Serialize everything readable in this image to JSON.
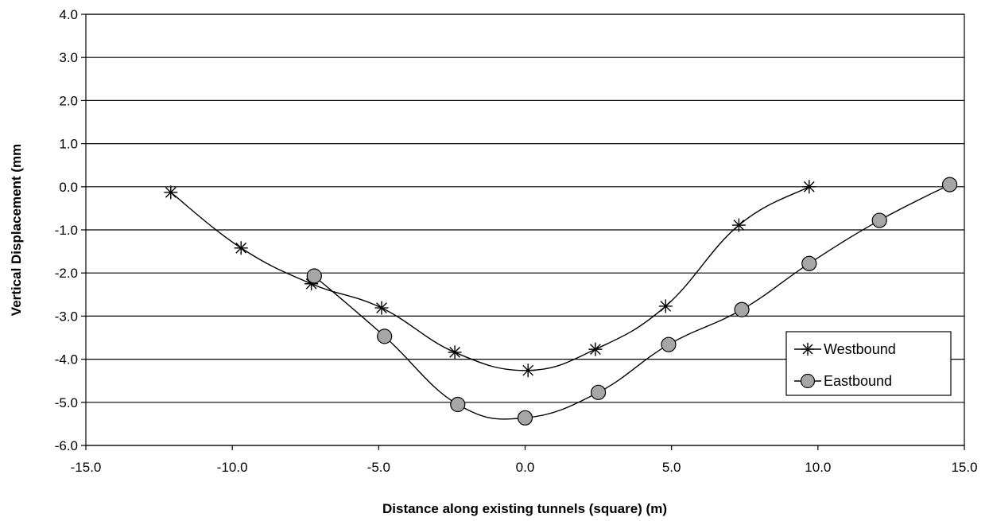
{
  "chart_data": {
    "type": "line",
    "title": "",
    "xlabel": "Distance along existing tunnels (square) (m)",
    "ylabel": "Vertical Displacement (mm",
    "xlim": [
      -15,
      15
    ],
    "ylim": [
      -6,
      4
    ],
    "x_ticks": [
      -15,
      -10,
      -5,
      0,
      5,
      10,
      15
    ],
    "y_ticks": [
      4,
      3,
      2,
      1,
      0,
      -1,
      -2,
      -3,
      -4,
      -5,
      -6
    ],
    "x_tick_labels": [
      "-15.0",
      "-10.0",
      "-5.0",
      "0.0",
      "5.0",
      "10.0",
      "15.0"
    ],
    "y_tick_labels": [
      "4.0",
      "3.0",
      "2.0",
      "1.0",
      "0.0",
      "-1.0",
      "-2.0",
      "-3.0",
      "-4.0",
      "-5.0",
      "-6.0"
    ],
    "grid": "horizontal",
    "legend_position": "right",
    "series": [
      {
        "name": "Westbound",
        "marker": "asterisk",
        "color": "#000000",
        "x": [
          -12.1,
          -9.7,
          -7.3,
          -4.9,
          -2.4,
          0.1,
          2.4,
          4.8,
          7.3,
          9.7
        ],
        "y": [
          -0.13,
          -1.42,
          -2.25,
          -2.81,
          -3.84,
          -4.26,
          -3.77,
          -2.77,
          -0.89,
          0.0
        ]
      },
      {
        "name": "Eastbound",
        "marker": "circle",
        "color": "#000000",
        "marker_fill": "#a6a6a6",
        "x": [
          -7.2,
          -4.8,
          -2.3,
          0.0,
          2.5,
          4.9,
          7.4,
          9.7,
          12.1,
          14.5
        ],
        "y": [
          -2.07,
          -3.47,
          -5.05,
          -5.36,
          -4.77,
          -3.66,
          -2.85,
          -1.78,
          -0.78,
          0.05
        ]
      }
    ]
  }
}
